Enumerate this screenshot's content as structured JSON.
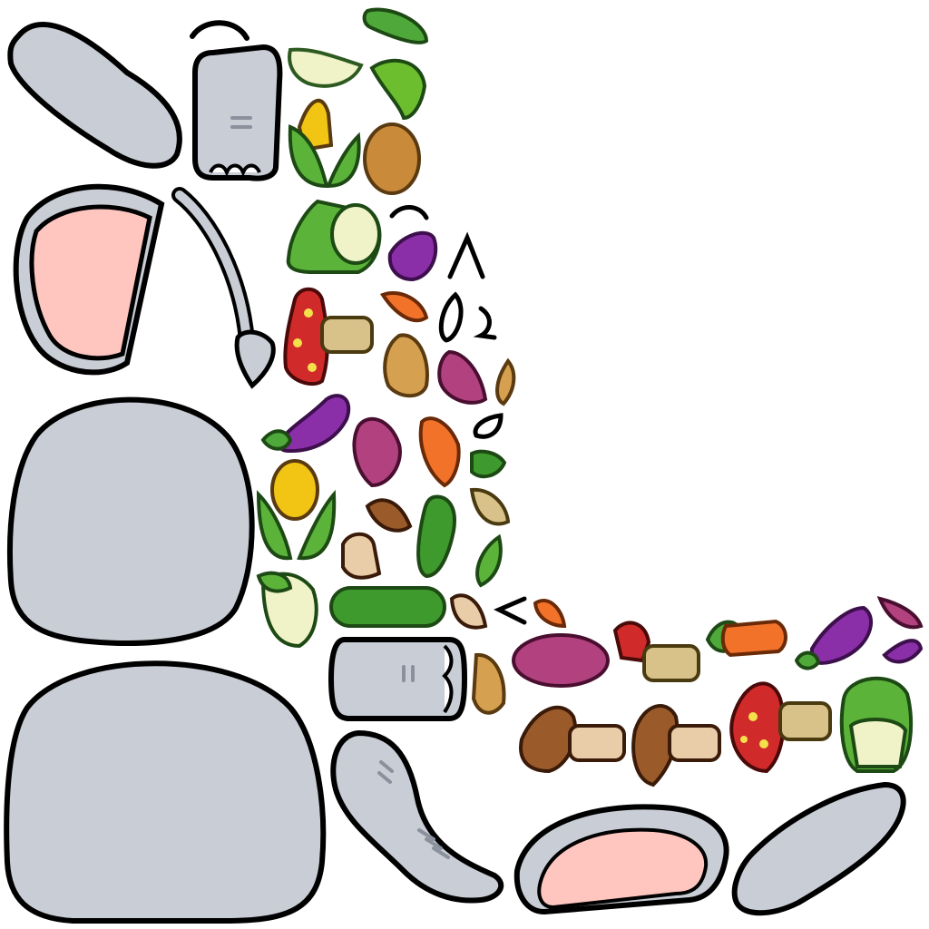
{
  "sheet": {
    "kind": "sprite-atlas",
    "character": "donkey",
    "background": "#ffffff"
  },
  "palette": {
    "outline": "#000000",
    "body_gray": "#c9ced6",
    "ear_inner_pink": "#ffc6c0",
    "corn_yellow": "#f2c414",
    "leaf_green": "#5bb33a",
    "cucumber_green": "#3f9a2d",
    "eggplant_purple": "#8a2fa8",
    "sweet_potato_purple": "#b2417f",
    "carrot_orange": "#f2722a",
    "mushroom_red": "#d02a2a",
    "mushroom_spot": "#f4e04a",
    "mushroom_brown": "#9a5a2a",
    "mushroom_stem": "#e8cda8",
    "potato_brown": "#c98a3a",
    "cabbage_light": "#f0f2c8"
  },
  "sprites": {
    "body_parts": [
      "ear-left",
      "head-front",
      "eyebrow",
      "ear-inner-pink",
      "tail",
      "torso-upper",
      "torso-lower",
      "arm-with-hoof",
      "leg",
      "ear-inner-pink-bottom",
      "ear-right",
      "face-marks"
    ],
    "vegetables": [
      "cucumber",
      "cabbage-leaf",
      "cut-cucumber",
      "corn",
      "potato",
      "bok-choy",
      "eggplant",
      "mushroom-red",
      "carrot-piece",
      "potato-slice",
      "sweet-potato",
      "mushroom-brown",
      "cabbage"
    ]
  }
}
